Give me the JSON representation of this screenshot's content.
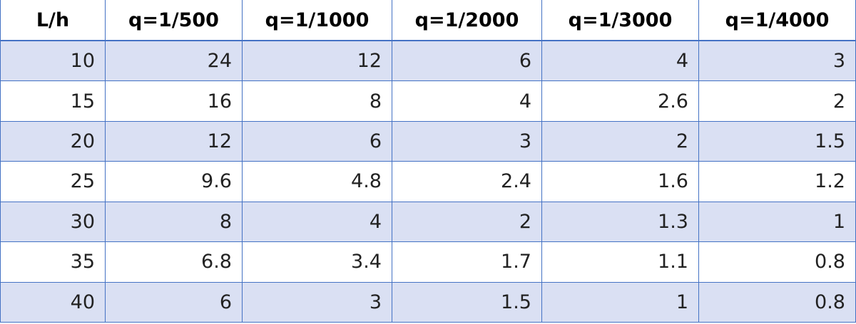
{
  "table": {
    "header": [
      "L/h",
      "q=1/500",
      "q=1/1000",
      "q=1/2000",
      "q=1/3000",
      "q=1/4000"
    ],
    "rows": [
      [
        10,
        24,
        12,
        6,
        4,
        3
      ],
      [
        15,
        16,
        8,
        4,
        2.6,
        2
      ],
      [
        20,
        12,
        6,
        3,
        2,
        1.5
      ],
      [
        25,
        9.6,
        4.8,
        2.4,
        1.6,
        1.2
      ],
      [
        30,
        8,
        4,
        2,
        1.3,
        1
      ],
      [
        35,
        6.8,
        3.4,
        1.7,
        1.1,
        0.8
      ],
      [
        40,
        6,
        3,
        1.5,
        1,
        0.8
      ]
    ]
  }
}
